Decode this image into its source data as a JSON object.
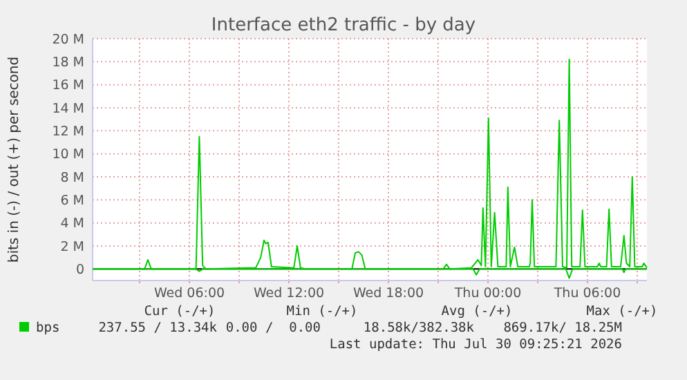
{
  "chart_data": {
    "type": "line",
    "title": "Interface eth2 traffic - by day",
    "ylabel": "bits in (-) / out (+) per second",
    "xlim": [
      "2026-07-29T00:10",
      "2026-07-30T09:35"
    ],
    "ylim": [
      -1,
      20
    ],
    "xticks": [
      {
        "value": "2026-07-29T03:00",
        "label": null
      },
      {
        "value": "2026-07-29T06:00",
        "label": "Wed 06:00"
      },
      {
        "value": "2026-07-29T09:00",
        "label": null
      },
      {
        "value": "2026-07-29T12:00",
        "label": "Wed 12:00"
      },
      {
        "value": "2026-07-29T15:00",
        "label": null
      },
      {
        "value": "2026-07-29T18:00",
        "label": "Wed 18:00"
      },
      {
        "value": "2026-07-29T21:00",
        "label": null
      },
      {
        "value": "2026-07-30T00:00",
        "label": "Thu 00:00"
      },
      {
        "value": "2026-07-30T03:00",
        "label": null
      },
      {
        "value": "2026-07-30T06:00",
        "label": "Thu 06:00"
      },
      {
        "value": "2026-07-30T09:00",
        "label": null
      }
    ],
    "yticks": [
      0,
      {
        "value": 2,
        "label": "2 M"
      },
      {
        "value": 4,
        "label": "4 M"
      },
      {
        "value": 6,
        "label": "6 M"
      },
      {
        "value": 8,
        "label": "8 M"
      },
      {
        "value": 10,
        "label": "10 M"
      },
      {
        "value": 12,
        "label": "12 M"
      },
      {
        "value": 14,
        "label": "14 M"
      },
      {
        "value": 16,
        "label": "16 M"
      },
      {
        "value": 18,
        "label": "18 M"
      },
      {
        "value": 20,
        "label": "20 M"
      }
    ],
    "grid": true,
    "legend": "bottom left",
    "line_style": "solid",
    "series": [
      {
        "name": "bps",
        "color": "#00cc00",
        "x": [
          "2026-07-29T00:10",
          "2026-07-29T03:18",
          "2026-07-29T03:30",
          "2026-07-29T03:42",
          "2026-07-29T06:24",
          "2026-07-29T06:36",
          "2026-07-29T06:48",
          "2026-07-29T07:00",
          "2026-07-29T09:36",
          "2026-07-29T10:00",
          "2026-07-29T10:18",
          "2026-07-29T10:30",
          "2026-07-29T10:36",
          "2026-07-29T10:45",
          "2026-07-29T10:57",
          "2026-07-29T12:18",
          "2026-07-29T12:30",
          "2026-07-29T12:42",
          "2026-07-29T13:00",
          "2026-07-29T15:48",
          "2026-07-29T16:00",
          "2026-07-29T16:12",
          "2026-07-29T16:24",
          "2026-07-29T16:36",
          "2026-07-29T21:18",
          "2026-07-29T21:30",
          "2026-07-29T21:42",
          "2026-07-29T23:00",
          "2026-07-29T23:24",
          "2026-07-29T23:36",
          "2026-07-29T23:42",
          "2026-07-29T23:51",
          "2026-07-30T00:02",
          "2026-07-30T00:12",
          "2026-07-30T00:24",
          "2026-07-30T00:36",
          "2026-07-30T01:06",
          "2026-07-30T01:12",
          "2026-07-30T01:21",
          "2026-07-30T01:36",
          "2026-07-30T01:48",
          "2026-07-30T02:30",
          "2026-07-30T02:33",
          "2026-07-30T02:40",
          "2026-07-30T02:48",
          "2026-07-30T04:06",
          "2026-07-30T04:18",
          "2026-07-30T04:30",
          "2026-07-30T04:45",
          "2026-07-30T04:54",
          "2026-07-30T05:03",
          "2026-07-30T05:33",
          "2026-07-30T05:42",
          "2026-07-30T05:51",
          "2026-07-30T06:36",
          "2026-07-30T06:42",
          "2026-07-30T06:48",
          "2026-07-30T07:09",
          "2026-07-30T07:18",
          "2026-07-30T07:27",
          "2026-07-30T08:00",
          "2026-07-30T08:12",
          "2026-07-30T08:21",
          "2026-07-30T08:33",
          "2026-07-30T08:42",
          "2026-07-30T08:51",
          "2026-07-30T09:18",
          "2026-07-30T09:24",
          "2026-07-30T09:35"
        ],
        "values": [
          0,
          0,
          0.8,
          0,
          0,
          11.5,
          0.3,
          0,
          0.1,
          0.1,
          1.0,
          2.5,
          2.2,
          2.3,
          0.2,
          0.1,
          2.0,
          0.1,
          0,
          0,
          1.4,
          1.5,
          1.2,
          0,
          0,
          0.4,
          0,
          0.1,
          0.8,
          0.3,
          5.3,
          0.2,
          13.1,
          0.2,
          4.9,
          0.2,
          0.2,
          7.1,
          0.2,
          1.9,
          0.2,
          0.2,
          0.5,
          6.0,
          0.2,
          0.2,
          12.9,
          0.2,
          0.1,
          18.2,
          0.2,
          0.2,
          5.1,
          0.2,
          0.2,
          0.5,
          0.2,
          0.2,
          5.2,
          0.2,
          0.2,
          2.9,
          0.5,
          0.2,
          8.0,
          0.2,
          0.2,
          0.5,
          0.1
        ]
      },
      {
        "color": "#00cc00",
        "x": [
          "2026-07-29T00:10",
          "2026-07-29T06:24",
          "2026-07-29T06:36",
          "2026-07-29T06:48",
          "2026-07-29T23:06",
          "2026-07-29T23:18",
          "2026-07-29T23:30",
          "2026-07-30T04:42",
          "2026-07-30T04:54",
          "2026-07-30T05:06",
          "2026-07-30T08:06",
          "2026-07-30T08:12",
          "2026-07-30T08:18",
          "2026-07-30T09:35"
        ],
        "values": [
          0,
          0,
          -0.2,
          0,
          0,
          -0.5,
          0,
          0,
          -0.8,
          0,
          0,
          -0.3,
          0,
          0
        ]
      }
    ],
    "annotations": [
      "Cur (-/+)",
      "Min (-/+)",
      "Avg (-/+)",
      "Max (-/+)",
      "237.55 / 13.34k",
      "0.00 /  0.00",
      "18.58k/382.38k",
      "869.17k/ 18.25M",
      "Last update: Thu Jul 30 09:25:21 2026"
    ]
  }
}
